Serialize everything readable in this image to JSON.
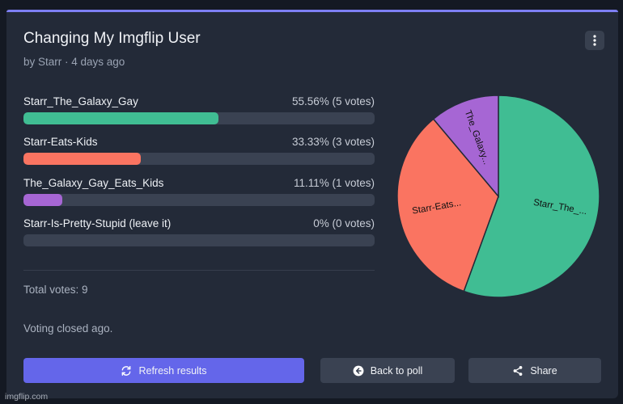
{
  "poll": {
    "title": "Changing My Imgflip User",
    "meta": "by Starr · 4 days ago",
    "options": [
      {
        "label": "Starr_The_Galaxy_Gay",
        "result": "55.56% (5 votes)",
        "percent": 55.56,
        "color": "#40bd93"
      },
      {
        "label": "Starr-Eats-Kids",
        "result": "33.33% (3 votes)",
        "percent": 33.33,
        "color": "#fa7461"
      },
      {
        "label": "The_Galaxy_Gay_Eats_Kids",
        "result": "11.11% (1 votes)",
        "percent": 11.11,
        "color": "#a666d4"
      },
      {
        "label": "Starr-Is-Pretty-Stupid (leave it)",
        "result": "0% (0 votes)",
        "percent": 0,
        "color": "#7d7ff3"
      }
    ],
    "total_votes": "Total votes: 9",
    "status": "Voting closed ago."
  },
  "buttons": {
    "refresh": "Refresh results",
    "back": "Back to poll",
    "share": "Share"
  },
  "icons": {
    "menu": "more-vertical-icon",
    "refresh": "refresh-icon",
    "back": "arrow-left-circle-icon",
    "share": "share-icon"
  },
  "chart_data": {
    "type": "pie",
    "slices": [
      {
        "label": "Starr_The_...",
        "value": 5,
        "color": "#40bd93"
      },
      {
        "label": "Starr-Eats...",
        "value": 3,
        "color": "#fa7461"
      },
      {
        "label": "The_Galaxy...",
        "value": 1,
        "color": "#a666d4"
      }
    ]
  },
  "watermark": "imgflip.com",
  "colors": {
    "accent": "#7d7ff3",
    "primary_button": "#6466ea",
    "card": "#232a38"
  }
}
